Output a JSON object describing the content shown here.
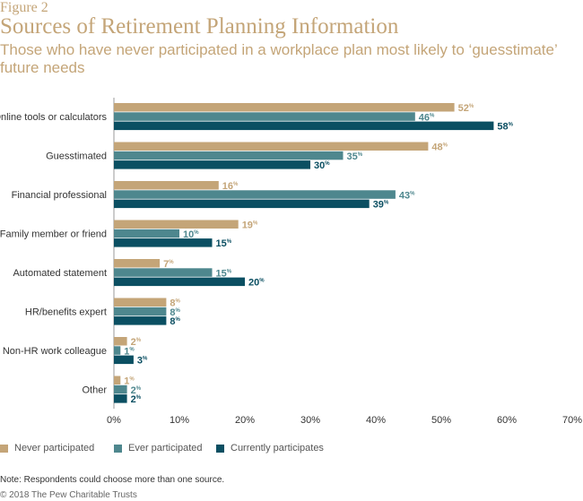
{
  "figure_label": "Figure 2",
  "chart_data": {
    "type": "bar",
    "orientation": "horizontal",
    "title": "Sources of Retirement Planning Information",
    "subtitle": "Those who have never participated in a workplace plan most likely to ‘guesstimate’ future needs",
    "categories": [
      "Online tools or calculators",
      "Guesstimated",
      "Financial professional",
      "Family member or friend",
      "Automated statement",
      "HR/benefits expert",
      "Non-HR work colleague",
      "Other"
    ],
    "series": [
      {
        "name": "Never participated",
        "color": "#c4a578",
        "values": [
          52,
          48,
          16,
          19,
          7,
          8,
          2,
          1
        ]
      },
      {
        "name": "Ever participated",
        "color": "#4e878e",
        "values": [
          46,
          35,
          43,
          10,
          15,
          8,
          1,
          2
        ]
      },
      {
        "name": "Currently participates",
        "color": "#0b4f62",
        "values": [
          58,
          30,
          39,
          15,
          20,
          8,
          3,
          2
        ]
      }
    ],
    "value_suffix": "%",
    "xlim": [
      0,
      70
    ],
    "xticks": [
      0,
      10,
      20,
      30,
      40,
      50,
      60,
      70
    ],
    "xtick_labels": [
      "0%",
      "10%",
      "20%",
      "30%",
      "40%",
      "50%",
      "60%",
      "70%"
    ],
    "grid": false,
    "legend_position": "bottom"
  },
  "note": "Note: Respondents could choose more than one source.",
  "copyright": "© 2018 The Pew Charitable Trusts"
}
